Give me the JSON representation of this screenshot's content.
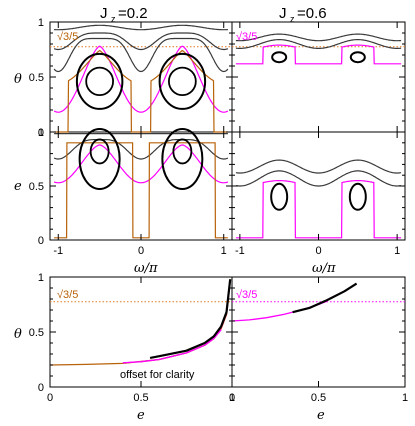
{
  "colors": {
    "black": "#000000",
    "gray": "#3a3a3a",
    "magenta": "#ff00ff",
    "brown": "#b8620a",
    "orange_dotted": "#e07a20",
    "pink": "#ff2a6d",
    "red": "#e03030"
  },
  "panel_titles": {
    "left": "J",
    "left_sub": "z",
    "left_val": "=0.2",
    "right": "J",
    "right_sub": "z",
    "right_val": "=0.6"
  },
  "labels": {
    "theta": "θ",
    "e_axis": "e",
    "omega_over_pi": "ω/π",
    "e_bottom": "e",
    "annotation": "√3/5",
    "offset_note": "offset for clarity"
  },
  "ticks": {
    "y_theta": [
      "0",
      "0.5",
      "1"
    ],
    "y_e": [
      "0",
      "0.5",
      "1"
    ],
    "x_omega": [
      "-1",
      "0",
      "1"
    ],
    "x_e_left": [
      "0",
      "0.5",
      "1"
    ],
    "x_e_right": [
      "0",
      "0.5",
      "1"
    ]
  },
  "chart_data": [
    {
      "type": "line",
      "panel": "top-left",
      "xlim": [
        -1.1,
        1.1
      ],
      "ylim": [
        0,
        1
      ],
      "reference_line": {
        "label": "√3/5",
        "y": 0.775,
        "style": "dotted",
        "color": "#e07a20"
      },
      "curves": [
        {
          "color": "#3a3a3a",
          "kind": "wave",
          "base": 0.95,
          "amp": 0.05
        },
        {
          "color": "#3a3a3a",
          "kind": "wave",
          "base": 0.87,
          "amp": 0.12
        },
        {
          "color": "#ff00ff",
          "kind": "separatrix"
        },
        {
          "color": "#b8620a",
          "kind": "separatrix-outer"
        },
        {
          "color": "#000000",
          "kind": "loops",
          "centers": [
            -0.5,
            0.5
          ],
          "y": 0.48
        }
      ]
    },
    {
      "type": "line",
      "panel": "middle-left",
      "xlim": [
        -1.1,
        1.1
      ],
      "ylim": [
        0,
        1
      ],
      "curves": [
        {
          "color": "#3a3a3a",
          "kind": "wave-inverted",
          "base": 0.97
        },
        {
          "color": "#ff00ff",
          "kind": "separatrix"
        },
        {
          "color": "#b8620a",
          "kind": "rectangles"
        },
        {
          "color": "#000000",
          "kind": "loops",
          "centers": [
            -0.5,
            0.5
          ],
          "y": 0.8
        }
      ]
    },
    {
      "type": "line",
      "panel": "top-right",
      "xlim": [
        -1.1,
        1.1
      ],
      "ylim": [
        0,
        1
      ],
      "reference_line": {
        "label": "√3/5",
        "y": 0.775,
        "style": "dotted",
        "color": "#e07a20"
      },
      "curves": [
        {
          "color": "#3a3a3a",
          "kind": "wave",
          "base": 0.88
        },
        {
          "color": "#3a3a3a",
          "kind": "wave",
          "base": 0.83
        },
        {
          "color": "#ff00ff",
          "kind": "separatrix"
        },
        {
          "color": "#000000",
          "kind": "loops",
          "centers": [
            -0.5,
            0.5
          ],
          "y": 0.7
        }
      ]
    },
    {
      "type": "line",
      "panel": "middle-right",
      "xlim": [
        -1.1,
        1.1
      ],
      "ylim": [
        0,
        1
      ],
      "curves": [
        {
          "color": "#3a3a3a",
          "kind": "wave",
          "base": 0.72
        },
        {
          "color": "#3a3a3a",
          "kind": "wave",
          "base": 0.62
        },
        {
          "color": "#ff00ff",
          "kind": "separatrix"
        },
        {
          "color": "#000000",
          "kind": "loops",
          "centers": [
            -0.5,
            0.5
          ],
          "y": 0.4
        }
      ]
    },
    {
      "type": "line",
      "panel": "bottom-left",
      "xlabel": "e",
      "ylabel": "θ",
      "xlim": [
        0,
        1
      ],
      "ylim": [
        0,
        1
      ],
      "annotation": "offset for clarity",
      "reference_line": {
        "label": "√3/5",
        "y": 0.775,
        "style": "dotted",
        "color": "#e07a20"
      },
      "series": [
        {
          "color": "#b8620a",
          "x": [
            0,
            0.2,
            0.4,
            0.6,
            0.75,
            0.85,
            0.9,
            0.94,
            0.97,
            0.99
          ],
          "y": [
            0.2,
            0.205,
            0.215,
            0.25,
            0.31,
            0.38,
            0.44,
            0.53,
            0.66,
            0.98
          ]
        },
        {
          "color": "#e03030",
          "x": [
            0.5,
            0.6,
            0.75,
            0.85,
            0.9,
            0.94,
            0.97,
            0.99
          ],
          "y": [
            0.23,
            0.25,
            0.31,
            0.38,
            0.44,
            0.53,
            0.66,
            0.96
          ]
        },
        {
          "color": "#ff00ff",
          "x": [
            0.4,
            0.5,
            0.6,
            0.75,
            0.85,
            0.9,
            0.94
          ],
          "y": [
            0.22,
            0.23,
            0.25,
            0.31,
            0.38,
            0.44,
            0.52
          ]
        },
        {
          "color": "#000000",
          "x": [
            0.55,
            0.6,
            0.75,
            0.85,
            0.9,
            0.94,
            0.97,
            0.99
          ],
          "y": [
            0.265,
            0.28,
            0.33,
            0.4,
            0.46,
            0.55,
            0.68,
            0.98
          ]
        }
      ]
    },
    {
      "type": "line",
      "panel": "bottom-right",
      "xlabel": "e",
      "xlim": [
        0,
        1
      ],
      "ylim": [
        0,
        1
      ],
      "reference_line": {
        "label": "√3/5",
        "y": 0.775,
        "style": "dotted",
        "color": "#ff00ff"
      },
      "series": [
        {
          "color": "#ff00ff",
          "x": [
            0,
            0.1,
            0.2,
            0.3,
            0.4,
            0.5,
            0.55
          ],
          "y": [
            0.6,
            0.61,
            0.63,
            0.66,
            0.7,
            0.75,
            0.78
          ]
        },
        {
          "color": "#000000",
          "x": [
            0.35,
            0.45,
            0.55,
            0.65,
            0.72
          ],
          "y": [
            0.68,
            0.72,
            0.79,
            0.87,
            0.94
          ]
        }
      ]
    }
  ]
}
